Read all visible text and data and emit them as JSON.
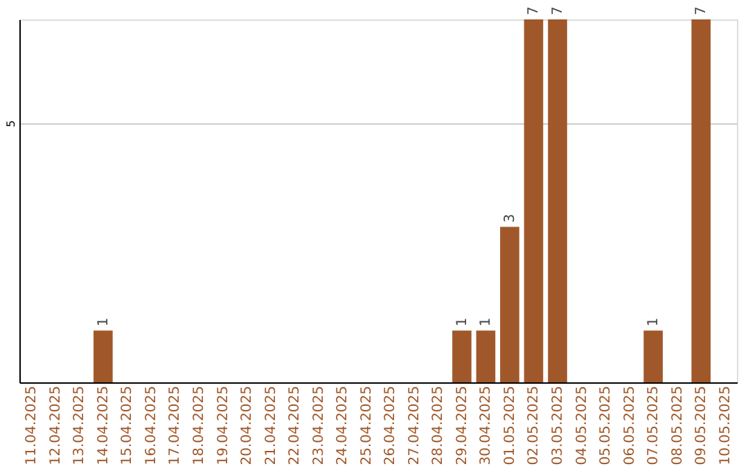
{
  "chart_data": {
    "type": "bar",
    "categories": [
      "11.04.2025",
      "12.04.2025",
      "13.04.2025",
      "14.04.2025",
      "15.04.2025",
      "16.04.2025",
      "17.04.2025",
      "18.04.2025",
      "19.04.2025",
      "20.04.2025",
      "21.04.2025",
      "22.04.2025",
      "23.04.2025",
      "24.04.2025",
      "25.04.2025",
      "26.04.2025",
      "27.04.2025",
      "28.04.2025",
      "29.04.2025",
      "30.04.2025",
      "01.05.2025",
      "02.05.2025",
      "03.05.2025",
      "04.05.2025",
      "05.05.2025",
      "06.05.2025",
      "07.05.2025",
      "08.05.2025",
      "09.05.2025",
      "10.05.2025"
    ],
    "values": [
      null,
      null,
      null,
      1,
      null,
      null,
      null,
      null,
      null,
      null,
      null,
      null,
      null,
      null,
      null,
      null,
      null,
      null,
      1,
      1,
      3,
      7,
      7,
      null,
      null,
      null,
      1,
      null,
      7,
      null
    ],
    "color": "#a0582a",
    "ylim": [
      0,
      7
    ],
    "yticks": [
      5
    ],
    "grid": "y",
    "data_labels": true
  }
}
